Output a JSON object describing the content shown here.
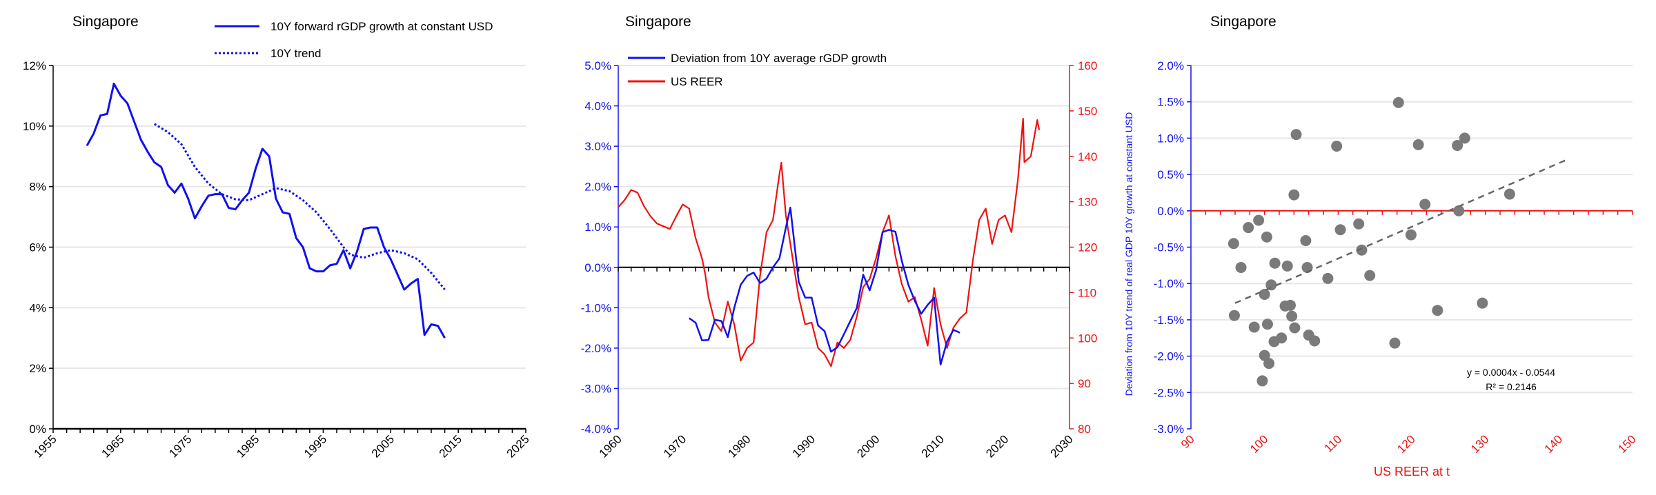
{
  "colors": {
    "blue": "#1010f0",
    "red": "#f01010",
    "gray": "#7a7a7a",
    "grid": "#e6e6e6",
    "black": "#000000"
  },
  "chart_data": [
    {
      "type": "line",
      "title": "Singapore",
      "xlim": [
        1955,
        2025
      ],
      "xticks": [
        "1955",
        "1965",
        "1975",
        "1985",
        "1995",
        "2005",
        "2015",
        "2025"
      ],
      "ylim": [
        0,
        12
      ],
      "yticks": [
        "0%",
        "2%",
        "4%",
        "6%",
        "8%",
        "10%",
        "12%"
      ],
      "grid": true,
      "legend_placement": "top-right",
      "series": [
        {
          "name": "10Y forward rGDP growth at constant USD",
          "style": "solid",
          "x": [
            1960,
            1961,
            1962,
            1963,
            1964,
            1965,
            1966,
            1967,
            1968,
            1969,
            1970,
            1971,
            1972,
            1973,
            1974,
            1975,
            1976,
            1977,
            1978,
            1979,
            1980,
            1981,
            1982,
            1983,
            1984,
            1985,
            1986,
            1987,
            1988,
            1989,
            1990,
            1991,
            1992,
            1993,
            1994,
            1995,
            1996,
            1997,
            1998,
            1999,
            2000,
            2001,
            2002,
            2003,
            2004,
            2005,
            2006,
            2007,
            2008,
            2009,
            2010,
            2011,
            2012,
            2013
          ],
          "y": [
            9.35,
            9.75,
            10.35,
            10.4,
            11.4,
            11.0,
            10.75,
            10.15,
            9.55,
            9.15,
            8.8,
            8.65,
            8.05,
            7.8,
            8.1,
            7.6,
            6.95,
            7.35,
            7.7,
            7.75,
            7.75,
            7.3,
            7.25,
            7.55,
            7.8,
            8.6,
            9.25,
            9.0,
            7.6,
            7.15,
            7.1,
            6.3,
            6.0,
            5.3,
            5.2,
            5.2,
            5.4,
            5.45,
            5.9,
            5.3,
            5.85,
            6.6,
            6.65,
            6.65,
            6.0,
            5.6,
            5.1,
            4.6,
            4.8,
            4.95,
            3.1,
            3.45,
            3.4,
            3.0
          ]
        },
        {
          "name": "10Y trend",
          "style": "dotted",
          "x": [
            1970,
            1972,
            1974,
            1976,
            1978,
            1980,
            1982,
            1984,
            1986,
            1988,
            1990,
            1992,
            1994,
            1996,
            1998,
            1999,
            2001,
            2003,
            2005,
            2007,
            2009,
            2011,
            2013
          ],
          "y": [
            10.07,
            9.8,
            9.4,
            8.65,
            8.1,
            7.75,
            7.58,
            7.55,
            7.75,
            7.95,
            7.85,
            7.55,
            7.15,
            6.6,
            6.0,
            5.75,
            5.65,
            5.8,
            5.9,
            5.8,
            5.6,
            5.15,
            4.6
          ]
        }
      ]
    },
    {
      "type": "line",
      "title": "Singapore",
      "xlim": [
        1960,
        2030
      ],
      "xticks": [
        "1960",
        "1970",
        "1980",
        "1990",
        "2000",
        "2010",
        "2020",
        "2030"
      ],
      "ylim": [
        -4,
        5
      ],
      "yticks": [
        "-4.0%",
        "-3.0%",
        "-2.0%",
        "-1.0%",
        "0.0%",
        "1.0%",
        "2.0%",
        "3.0%",
        "4.0%",
        "5.0%"
      ],
      "y2lim": [
        80,
        160
      ],
      "y2ticks": [
        "80",
        "90",
        "100",
        "110",
        "120",
        "130",
        "140",
        "150",
        "160"
      ],
      "grid": true,
      "legend_placement": "top-left",
      "series": [
        {
          "name": "Deviation from 10Y average rGDP growth",
          "axis": "left",
          "x": [
            1971,
            1972,
            1973,
            1974,
            1975,
            1976,
            1977,
            1978,
            1979,
            1980,
            1981,
            1982,
            1983,
            1984,
            1985,
            1986,
            1986.7,
            1987,
            1988,
            1989,
            1990,
            1991,
            1992,
            1993,
            1994,
            1995,
            1996,
            1997,
            1998,
            1999,
            2000,
            2001,
            2002,
            2003,
            2004,
            2005,
            2006,
            2007,
            2008,
            2009,
            2010,
            2011,
            2012,
            2013
          ],
          "y": [
            -1.26,
            -1.37,
            -1.81,
            -1.8,
            -1.3,
            -1.33,
            -1.73,
            -1.0,
            -0.43,
            -0.21,
            -0.13,
            -0.39,
            -0.28,
            0.0,
            0.22,
            0.98,
            1.48,
            1.05,
            -0.36,
            -0.75,
            -0.75,
            -1.44,
            -1.58,
            -2.09,
            -1.98,
            -1.66,
            -1.33,
            -1.01,
            -0.18,
            -0.57,
            -0.07,
            0.87,
            0.93,
            0.88,
            0.15,
            -0.43,
            -0.83,
            -1.15,
            -0.93,
            -0.75,
            -2.41,
            -1.84,
            -1.55,
            -1.62
          ]
        },
        {
          "name": "US REER",
          "axis": "right",
          "x": [
            1960,
            1961,
            1962,
            1963,
            1964,
            1965,
            1966,
            1967,
            1968,
            1969,
            1970,
            1971,
            1972,
            1973,
            1973.5,
            1974,
            1975,
            1976,
            1977,
            1978,
            1979,
            1980,
            1981,
            1982,
            1983,
            1984,
            1985,
            1985.3,
            1986,
            1987,
            1988,
            1989,
            1990,
            1991,
            1992,
            1993,
            1994,
            1995,
            1996,
            1997,
            1998,
            1999,
            2000,
            2001,
            2002,
            2003,
            2004,
            2005,
            2006,
            2007,
            2008,
            2009,
            2010,
            2011,
            2012,
            2013,
            2014,
            2015,
            2016,
            2017,
            2018,
            2019,
            2020,
            2021,
            2022,
            2022.8,
            2023,
            2024,
            2025,
            2025.3
          ],
          "y": [
            128.8,
            130.4,
            132.6,
            132,
            129,
            126.8,
            125.2,
            124.6,
            124,
            126.8,
            129.4,
            128.5,
            122,
            117.5,
            114,
            109,
            103.4,
            101.5,
            108,
            103,
            95,
            97.8,
            99,
            113.7,
            123.3,
            126,
            136,
            138.6,
            127,
            118,
            109,
            103,
            103.4,
            97.8,
            96.4,
            93.8,
            99,
            97.8,
            99.6,
            104.7,
            111.2,
            113,
            117.6,
            123.3,
            127,
            118,
            111.8,
            108,
            109,
            104,
            98.3,
            111,
            103,
            97.8,
            102.3,
            104.3,
            105.6,
            117,
            126,
            128.5,
            120.7,
            126,
            127,
            123.3,
            134.9,
            148.3,
            138.7,
            140,
            148,
            145.8
          ]
        }
      ]
    },
    {
      "type": "scatter",
      "title": "Singapore",
      "xlabel": "US REER at t",
      "ylabel": "Deviation from 10Y trend of real GDP 10Y growth at constant USD",
      "xlim": [
        90,
        150
      ],
      "xticks": [
        "90",
        "100",
        "110",
        "120",
        "130",
        "140",
        "150"
      ],
      "ylim": [
        -3,
        2
      ],
      "yticks": [
        "-3.0%",
        "-2.5%",
        "-2.0%",
        "-1.5%",
        "-1.0%",
        "-0.5%",
        "0.0%",
        "0.5%",
        "1.0%",
        "1.5%",
        "2.0%"
      ],
      "grid": true,
      "points": {
        "x": [
          95.8,
          95.9,
          96.8,
          97.8,
          98.6,
          99.2,
          99.7,
          100.0,
          100.0,
          100.3,
          100.4,
          100.6,
          100.9,
          101.3,
          101.4,
          102.3,
          102.8,
          103.1,
          103.5,
          103.7,
          104.0,
          104.1,
          104.3,
          105.6,
          105.8,
          106.0,
          106.8,
          108.6,
          109.8,
          110.3,
          112.8,
          113.2,
          114.3,
          117.7,
          118.2,
          119.9,
          120.9,
          121.8,
          123.5,
          126.2,
          126.4,
          127.2,
          129.6,
          133.3
        ],
        "y": [
          -0.45,
          -1.44,
          -0.78,
          -0.23,
          -1.6,
          -0.13,
          -2.34,
          -1.99,
          -1.15,
          -0.36,
          -1.56,
          -2.1,
          -1.02,
          -1.8,
          -0.72,
          -1.75,
          -1.31,
          -0.76,
          -1.3,
          -1.45,
          0.22,
          -1.61,
          1.05,
          -0.41,
          -0.78,
          -1.71,
          -1.79,
          -0.93,
          0.89,
          -0.26,
          -0.18,
          -0.54,
          -0.89,
          -1.82,
          1.49,
          -0.33,
          0.91,
          0.09,
          -1.37,
          0.9,
          0.0,
          1.0,
          -1.27,
          0.23
        ]
      },
      "trendline": {
        "x": [
          96,
          141
        ],
        "y": [
          -1.27,
          0.7
        ],
        "equation": "y = 0.0004x - 0.0544",
        "r2": "R² = 0.2146"
      }
    }
  ]
}
